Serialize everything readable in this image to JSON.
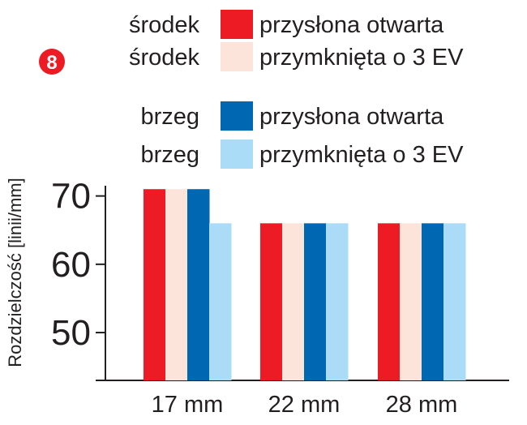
{
  "badge": "8",
  "chart_data": {
    "type": "bar",
    "categories": [
      "17 mm",
      "22 mm",
      "28 mm"
    ],
    "ylabel": "Rozdzielczość  [linii/mm]",
    "yticks": [
      50,
      60,
      70
    ],
    "ylim": [
      43,
      71.5
    ],
    "grid": false,
    "legend_position": "top",
    "series": [
      {
        "name": "przysłona otwarta",
        "group": "środek",
        "color": "#ed1c24",
        "values": [
          71,
          66,
          66
        ]
      },
      {
        "name": "przymknięta o 3 EV",
        "group": "środek",
        "color": "#fde4da",
        "values": [
          71,
          66,
          66
        ]
      },
      {
        "name": "przysłona otwarta",
        "group": "brzeg",
        "color": "#0068b3",
        "values": [
          71,
          66,
          66
        ]
      },
      {
        "name": "przymknięta o 3 EV",
        "group": "brzeg",
        "color": "#abdcf7",
        "values": [
          66,
          66,
          66
        ]
      }
    ]
  }
}
